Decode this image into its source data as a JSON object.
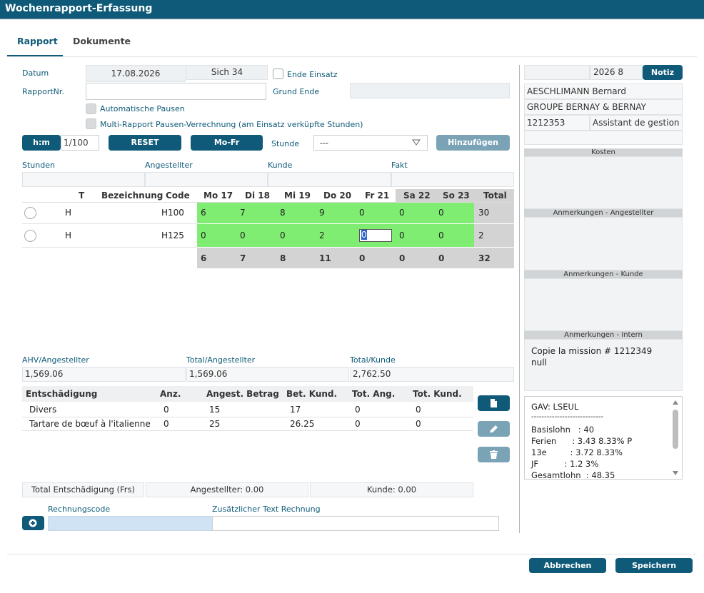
{
  "window": {
    "title": "Wochenrapport-Erfassung"
  },
  "tabs": [
    "Rapport",
    "Dokumente"
  ],
  "form": {
    "datum_label": "Datum",
    "datum_value": "17.08.2026",
    "week_value": "Sich 34",
    "ende_einsatz_label": "Ende Einsatz",
    "rapportnr_label": "RapportNr.",
    "rapportnr_value": "",
    "grund_ende_label": "Grund Ende",
    "auto_pausen_label": "Automatische Pausen",
    "multi_rapport_label": "Multi-Rapport Pausen-Verrechnung (am Einsatz verküpfte Stunden)"
  },
  "toolbar": {
    "hm_label": "h:m",
    "unit_value": "1/100",
    "reset_label": "RESET",
    "mofr_label": "Mo-Fr",
    "stunde_label": "Stunde",
    "stunde_value": "---",
    "hinzufuegen_label": "Hinzufügen"
  },
  "sums_row": {
    "labels": [
      "Stunden",
      "Angestellter",
      "Kunde",
      "Fakt"
    ]
  },
  "hours_table": {
    "headers": [
      "T",
      "Bezeichnung",
      "Code",
      "Mo 17",
      "Di 18",
      "Mi 19",
      "Do 20",
      "Fr 21",
      "Sa 22",
      "So 23",
      "Total"
    ],
    "rows": [
      {
        "t": "H",
        "bez": "",
        "code": "H100",
        "days": [
          "6",
          "7",
          "8",
          "9",
          "0",
          "0",
          "0"
        ],
        "total": "30"
      },
      {
        "t": "H",
        "bez": "",
        "code": "H125",
        "days": [
          "0",
          "0",
          "0",
          "2",
          "0",
          "0",
          "0"
        ],
        "total": "2"
      }
    ],
    "totals": [
      "6",
      "7",
      "8",
      "11",
      "0",
      "0",
      "0",
      "32"
    ]
  },
  "totals": {
    "ahv_label": "AHV/Angestellter",
    "ahv_value": "1,569.06",
    "total_ang_label": "Total/Angestellter",
    "total_ang_value": "1,569.06",
    "total_kunde_label": "Total/Kunde",
    "total_kunde_value": "2,762.50"
  },
  "entsch_table": {
    "headers": [
      "Entschädigung",
      "Anz.",
      "Angest. Betrag",
      "Bet. Kund.",
      "Tot. Ang.",
      "Tot. Kund."
    ],
    "rows": [
      [
        "Divers",
        "0",
        "15",
        "17",
        "0",
        "0"
      ],
      [
        "Tartare de bœuf à l'italienne",
        "0",
        "25",
        "26.25",
        "0",
        "0"
      ]
    ]
  },
  "entsch_summary": {
    "title": "Total Entschädigung (Frs)",
    "angestellter": "Angestellter: 0.00",
    "kunde": "Kunde: 0.00"
  },
  "rechnung": {
    "code_label": "Rechnungscode",
    "text_label": "Zusätzlicher Text Rechnung"
  },
  "right_panel": {
    "period": "2026 8",
    "notiz_label": "Notiz",
    "name": "AESCHLIMANN Bernard",
    "company": "GROUPE BERNAY & BERNAY",
    "mission_no": "1212353",
    "role": "Assistant de gestion",
    "sections": [
      "Kosten",
      "Anmerkungen - Angestellter",
      "Anmerkungen - Kunde",
      "Anmerkungen - Intern"
    ],
    "intern_line1": "Copie la mission # 1212349",
    "intern_line2": "null",
    "gav": [
      "GAV: LSEUL",
      "----------------------------",
      "Basislohn   : 40",
      "Ferien      : 3.43 8.33% P",
      "13e         : 3.72 8.33%",
      "JF          : 1.2 3%",
      "Gesamtlohn  : 48.35"
    ]
  },
  "footer": {
    "cancel_label": "Abbrechen",
    "save_label": "Speichern"
  },
  "colors": {
    "primary": "#0e5a78",
    "green_cell": "#7fec72",
    "weekend_header": "#d3d3d3"
  }
}
